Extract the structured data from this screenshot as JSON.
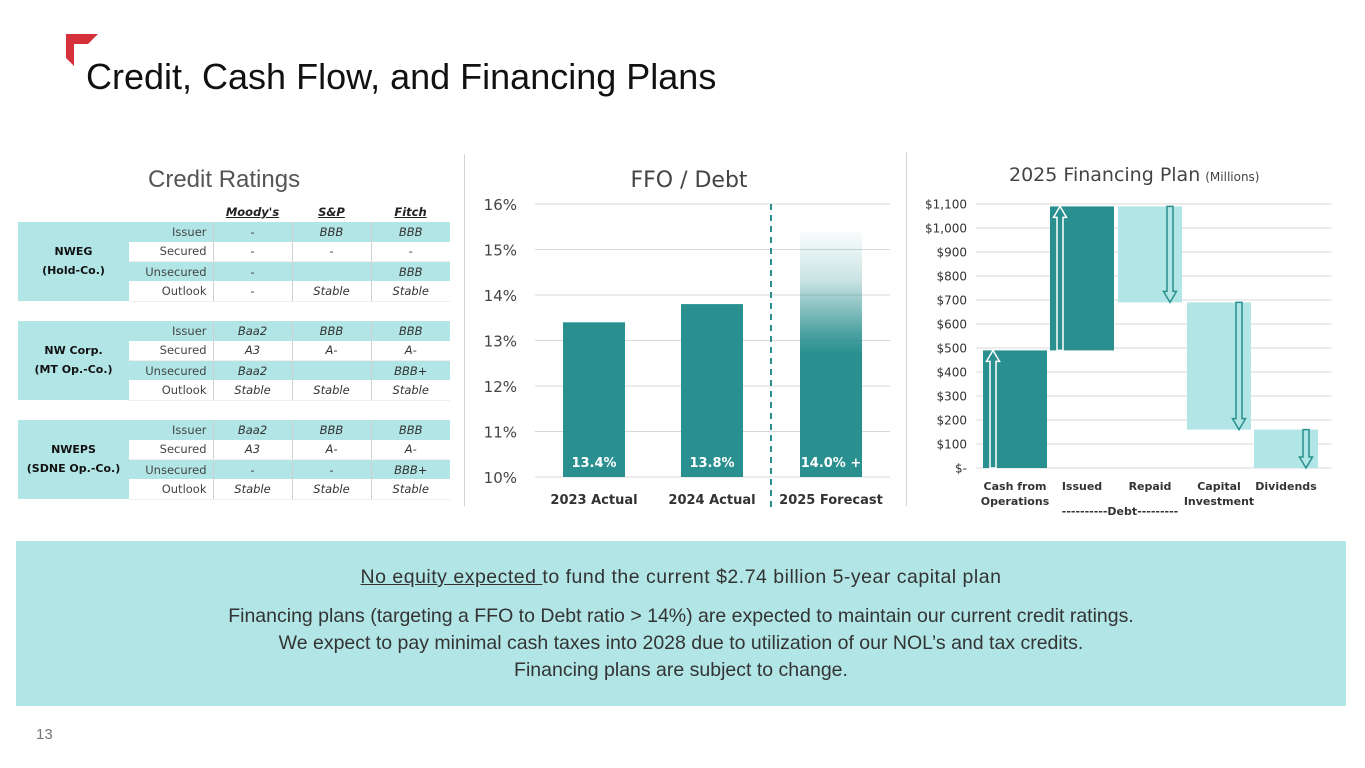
{
  "page": {
    "title": "Credit, Cash Flow, and Financing Plans",
    "page_number": "13",
    "accent_color": "#d6303a",
    "teal_dark": "#2a8f8f",
    "teal_light": "#b2e6e6"
  },
  "ratings": {
    "heading": "Credit Ratings",
    "agencies": [
      "Moody's",
      "S&P",
      "Fitch"
    ],
    "groups": [
      {
        "entity_line1": "NWEG",
        "entity_line2": "(Hold-Co.)",
        "rows": [
          {
            "label": "Issuer",
            "values": [
              "-",
              "BBB",
              "BBB"
            ]
          },
          {
            "label": "Secured",
            "values": [
              "-",
              "-",
              "-"
            ]
          },
          {
            "label": "Unsecured",
            "values": [
              "-",
              "",
              "BBB"
            ]
          },
          {
            "label": "Outlook",
            "values": [
              "-",
              "Stable",
              "Stable"
            ]
          }
        ]
      },
      {
        "entity_line1": "NW Corp.",
        "entity_line2": "(MT Op.-Co.)",
        "rows": [
          {
            "label": "Issuer",
            "values": [
              "Baa2",
              "BBB",
              "BBB"
            ]
          },
          {
            "label": "Secured",
            "values": [
              "A3",
              "A-",
              "A-"
            ]
          },
          {
            "label": "Unsecured",
            "values": [
              "Baa2",
              "",
              "BBB+"
            ]
          },
          {
            "label": "Outlook",
            "values": [
              "Stable",
              "Stable",
              "Stable"
            ]
          }
        ]
      },
      {
        "entity_line1": "NWEPS",
        "entity_line2": "(SDNE Op.-Co.)",
        "rows": [
          {
            "label": "Issuer",
            "values": [
              "Baa2",
              "BBB",
              "BBB"
            ]
          },
          {
            "label": "Secured",
            "values": [
              "A3",
              "A-",
              "A-"
            ]
          },
          {
            "label": "Unsecured",
            "values": [
              "-",
              "-",
              "BBB+"
            ]
          },
          {
            "label": "Outlook",
            "values": [
              "Stable",
              "Stable",
              "Stable"
            ]
          }
        ]
      }
    ]
  },
  "chart_data": [
    {
      "type": "bar",
      "title": "FFO / Debt",
      "categories": [
        "2023 Actual",
        "2024 Actual",
        "2025 Forecast"
      ],
      "values": [
        13.4,
        13.8,
        14.0
      ],
      "data_labels": [
        "13.4%",
        "13.8%",
        "14.0% +"
      ],
      "ylim": [
        10,
        16
      ],
      "yticks": [
        "16%",
        "15%",
        "14%",
        "13%",
        "12%",
        "11%",
        "10%"
      ],
      "forecast_bar_visual_top": 15.4,
      "grid": true,
      "forecast_divider": "dashed line between 2024 Actual and 2025 Forecast"
    },
    {
      "type": "bar",
      "subtype": "waterfall",
      "title": "2025 Financing Plan",
      "title_suffix": "(Millions)",
      "categories": [
        "Cash from Operations",
        "Issued",
        "Repaid",
        "Capital Investment",
        "Dividends"
      ],
      "category_lines": [
        [
          "Cash from",
          "Operations"
        ],
        [
          "Issued"
        ],
        [
          "Repaid"
        ],
        [
          "Capital",
          "Investment"
        ],
        [
          "Dividends"
        ]
      ],
      "steps": [
        {
          "category": "Cash from Operations",
          "from": 0,
          "to": 490,
          "direction": "up",
          "color": "#2a8f8f"
        },
        {
          "category": "Issued",
          "from": 490,
          "to": 1090,
          "direction": "up",
          "color": "#2a8f8f"
        },
        {
          "category": "Repaid",
          "from": 1090,
          "to": 690,
          "direction": "down",
          "color": "#b2e6e6"
        },
        {
          "category": "Capital Investment",
          "from": 690,
          "to": 160,
          "direction": "down",
          "color": "#b2e6e6"
        },
        {
          "category": "Dividends",
          "from": 160,
          "to": 0,
          "direction": "down",
          "color": "#b2e6e6"
        }
      ],
      "ylim": [
        0,
        1100
      ],
      "yticks": [
        "$1,100",
        "$1,000",
        "$900",
        "$800",
        "$700",
        "$600",
        "$500",
        "$400",
        "$300",
        "$200",
        "$100",
        "$-"
      ],
      "group_label": "----------Debt---------",
      "grid": true
    }
  ],
  "callout": {
    "headline_underlined": "No equity expected ",
    "headline_rest": "to fund the current $2.74 billion 5-year capital plan",
    "lines": [
      "Financing plans (targeting a FFO to Debt ratio > 14%) are expected to maintain our current credit ratings.",
      "We expect to pay minimal cash taxes into 2028 due to utilization of our NOL’s and tax credits.",
      "Financing plans are subject to change."
    ]
  }
}
